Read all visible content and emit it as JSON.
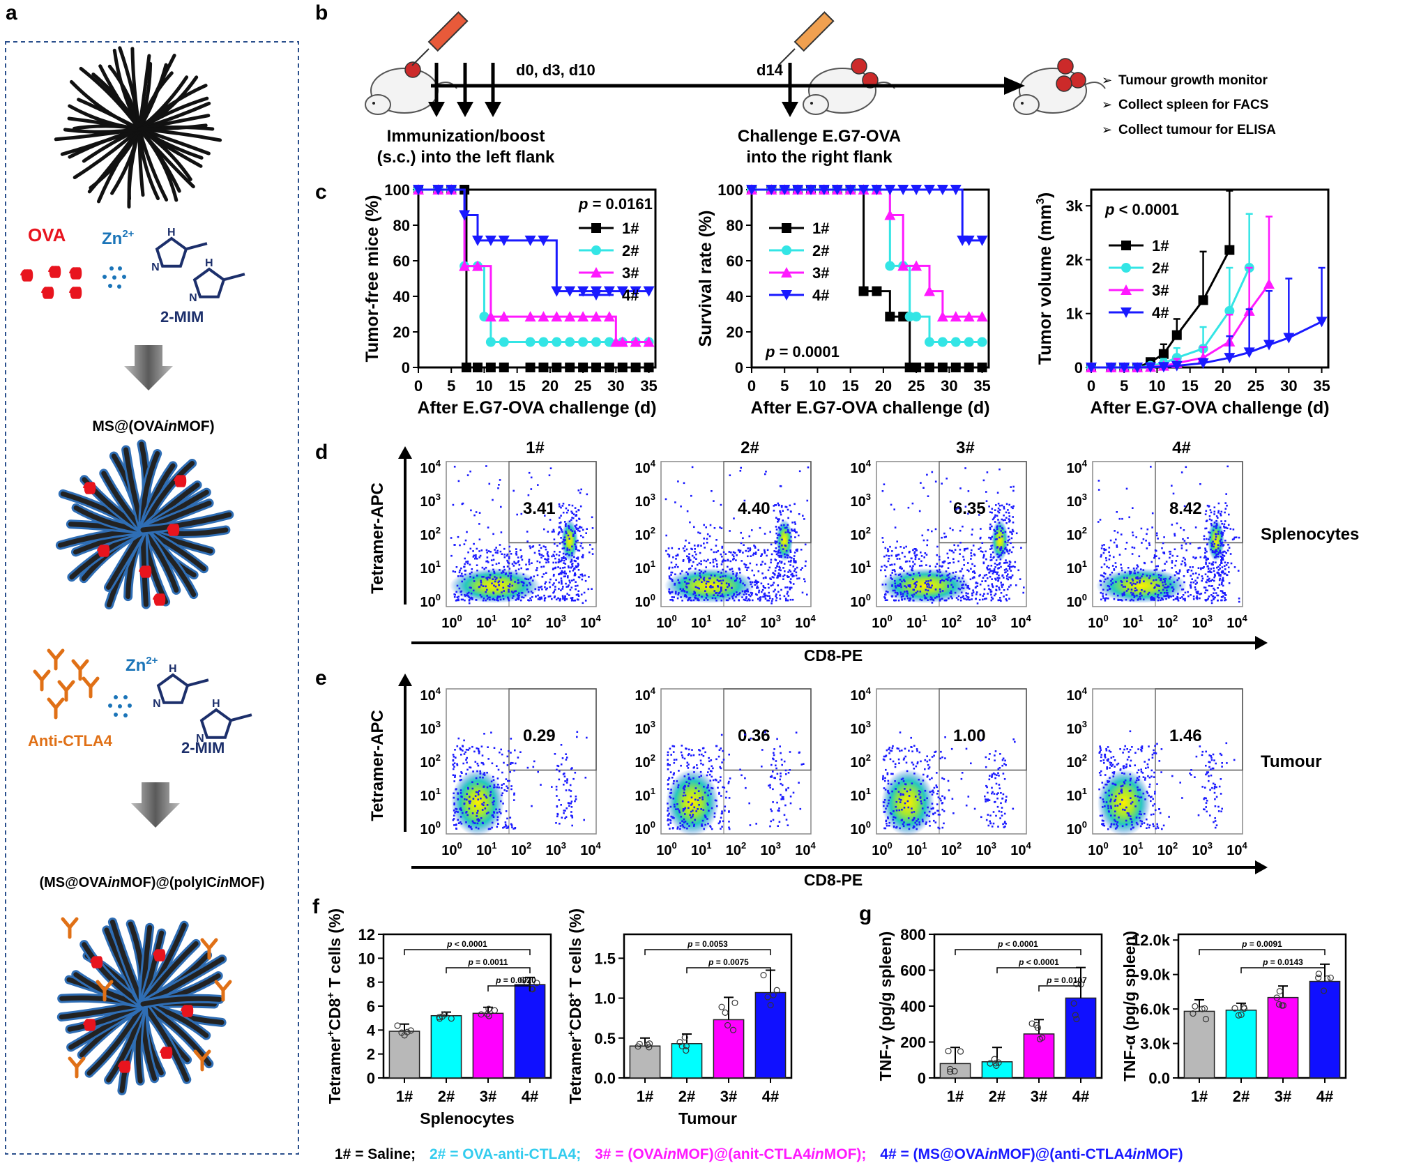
{
  "panel_letters": [
    "a",
    "b",
    "c",
    "d",
    "e",
    "f",
    "g"
  ],
  "colors": {
    "g1": "#000000",
    "g2": "#33e5e5",
    "g3": "#ff19ff",
    "g4": "#1919ff",
    "bar1": "#b8b8b8",
    "bar2": "#00ffff",
    "bar3": "#ff00ff",
    "bar4": "#1010ff",
    "ova": "#e8141e",
    "zn": "#1a74b8",
    "mim": "#1c2f6b",
    "ab": "#e07016",
    "mof": "#2f6eb5"
  },
  "panel_a": {
    "ova": "OVA",
    "zn": "Zn",
    "zn_sup": "2+",
    "mim": "2-MIM",
    "h": "H",
    "n": "N",
    "product1_pre": "MS@(OVA",
    "product1_it": "in",
    "product1_post": "MOF)",
    "anti": "Anti-CTLA4",
    "product2_a": "(MS@OVA",
    "product2_b": "in",
    "product2_c": "MOF)@(polyIC",
    "product2_d": "in",
    "product2_e": "MOF)"
  },
  "panel_b": {
    "timepoints": "d0, d3, d10",
    "challenge_day": "d14",
    "immunization": [
      "Immunization/boost",
      "(s.c.) into the left flank"
    ],
    "challenge": [
      "Challenge E.G7-OVA",
      "into the right flank"
    ],
    "readouts": [
      "Tumour growth monitor",
      "Collect spleen for FACS",
      "Collect tumour for ELISA"
    ]
  },
  "chart_data": [
    {
      "type": "line",
      "title": "",
      "xlabel": "After E.G7-OVA challenge (d)",
      "ylabel": "Tumor-free mice (%)",
      "xlim": [
        0,
        36
      ],
      "ylim": [
        0,
        100
      ],
      "xticks": [
        "0",
        "5",
        "10",
        "15",
        "20",
        "25",
        "30",
        "35"
      ],
      "yticks": [
        "0",
        "20",
        "40",
        "60",
        "80",
        "100"
      ],
      "p_text": "p = 0.0161",
      "legend": "top-right",
      "series": [
        {
          "name": "1#",
          "x": [
            0,
            3,
            5,
            7,
            7.3,
            9,
            11,
            13,
            17,
            19,
            21,
            23,
            25,
            27,
            29,
            31,
            33,
            35
          ],
          "y": [
            100,
            100,
            100,
            100,
            0,
            0,
            0,
            0,
            0,
            0,
            0,
            0,
            0,
            0,
            0,
            0,
            0,
            0
          ]
        },
        {
          "name": "2#",
          "x": [
            0,
            3,
            5,
            7,
            9,
            10,
            11,
            13,
            17,
            19,
            21,
            23,
            25,
            27,
            29,
            31,
            33,
            35
          ],
          "y": [
            100,
            100,
            100,
            57,
            57,
            28.6,
            14.3,
            14.3,
            14.3,
            14.3,
            14.3,
            14.3,
            14.3,
            14.3,
            14.3,
            14.3,
            14.3,
            14.3
          ]
        },
        {
          "name": "3#",
          "x": [
            0,
            3,
            5,
            7,
            9,
            11,
            13,
            17,
            19,
            21,
            23,
            25,
            27,
            29,
            30,
            31,
            33,
            35
          ],
          "y": [
            100,
            100,
            100,
            57,
            57,
            28.6,
            28.6,
            28.6,
            28.6,
            28.6,
            28.6,
            28.6,
            28.6,
            28.6,
            14.3,
            14.3,
            14.3,
            14.3
          ]
        },
        {
          "name": "4#",
          "x": [
            0,
            3,
            5,
            7,
            9,
            11,
            13,
            17,
            19,
            21,
            23,
            25,
            27,
            29,
            31,
            33,
            35
          ],
          "y": [
            100,
            100,
            100,
            85.7,
            71.4,
            71.4,
            71.4,
            71.4,
            71.4,
            42.9,
            42.9,
            42.9,
            42.9,
            42.9,
            42.9,
            42.9,
            42.9
          ]
        }
      ]
    },
    {
      "type": "line",
      "title": "",
      "xlabel": "After E.G7-OVA challenge (d)",
      "ylabel": "Survival rate (%)",
      "xlim": [
        0,
        36
      ],
      "ylim": [
        0,
        100
      ],
      "xticks": [
        "0",
        "5",
        "10",
        "15",
        "20",
        "25",
        "30",
        "35"
      ],
      "yticks": [
        "0",
        "20",
        "40",
        "60",
        "80",
        "100"
      ],
      "p_text": "p = 0.0001",
      "legend": "left",
      "series": [
        {
          "name": "1#",
          "x": [
            0,
            3,
            5,
            7,
            9,
            11,
            13,
            15,
            17,
            19,
            21,
            23,
            24,
            25,
            27,
            29,
            31,
            33,
            35
          ],
          "y": [
            100,
            100,
            100,
            100,
            100,
            100,
            100,
            100,
            42.9,
            42.9,
            28.6,
            28.6,
            0,
            0,
            0,
            0,
            0,
            0,
            0
          ]
        },
        {
          "name": "2#",
          "x": [
            0,
            3,
            5,
            7,
            9,
            11,
            13,
            15,
            17,
            19,
            21,
            23,
            24,
            25,
            27,
            29,
            31,
            33,
            35
          ],
          "y": [
            100,
            100,
            100,
            100,
            100,
            100,
            100,
            100,
            100,
            100,
            57.1,
            57.1,
            28.6,
            28.6,
            14.3,
            14.3,
            14.3,
            14.3,
            14.3
          ]
        },
        {
          "name": "3#",
          "x": [
            0,
            3,
            5,
            7,
            9,
            11,
            13,
            15,
            17,
            19,
            21,
            23,
            25,
            27,
            29,
            31,
            33,
            35
          ],
          "y": [
            100,
            100,
            100,
            100,
            100,
            100,
            100,
            100,
            100,
            100,
            85.7,
            57.1,
            57.1,
            42.9,
            28.6,
            28.6,
            28.6,
            28.6
          ]
        },
        {
          "name": "4#",
          "x": [
            0,
            3,
            5,
            7,
            9,
            11,
            13,
            15,
            17,
            19,
            21,
            23,
            25,
            27,
            29,
            31,
            32,
            33,
            35
          ],
          "y": [
            100,
            100,
            100,
            100,
            100,
            100,
            100,
            100,
            100,
            100,
            100,
            100,
            100,
            100,
            100,
            100,
            71.4,
            71.4,
            71.4
          ]
        }
      ]
    },
    {
      "type": "line",
      "title": "",
      "xlabel": "After E.G7-OVA challenge (d)",
      "ylabel": "Tumor volume (mm",
      "ylabel_sup": "3",
      "ylabel_close": ")",
      "xlim": [
        0,
        36
      ],
      "ylim": [
        0,
        3300
      ],
      "xticks": [
        "0",
        "5",
        "10",
        "15",
        "20",
        "25",
        "30",
        "35"
      ],
      "yticks": [
        "0",
        "1k",
        "2k",
        "3k"
      ],
      "p_text": "p < 0.0001",
      "legend": "top-left",
      "series": [
        {
          "name": "1#",
          "x": [
            0,
            3,
            5,
            7,
            9,
            11,
            13,
            17,
            21
          ],
          "y": [
            0,
            0,
            0,
            0,
            100,
            250,
            600,
            1250,
            2180
          ],
          "err": [
            0,
            0,
            0,
            0,
            60,
            180,
            300,
            900,
            1100
          ]
        },
        {
          "name": "2#",
          "x": [
            0,
            3,
            5,
            7,
            9,
            11,
            13,
            17,
            21,
            24
          ],
          "y": [
            0,
            0,
            0,
            0,
            30,
            80,
            180,
            350,
            1050,
            1850
          ],
          "err": [
            0,
            0,
            0,
            0,
            30,
            80,
            180,
            400,
            800,
            1000
          ]
        },
        {
          "name": "3#",
          "x": [
            0,
            3,
            5,
            7,
            9,
            11,
            13,
            17,
            21,
            24,
            27
          ],
          "y": [
            0,
            0,
            0,
            0,
            10,
            30,
            80,
            180,
            480,
            1050,
            1550
          ],
          "err": [
            0,
            0,
            0,
            0,
            10,
            30,
            80,
            200,
            500,
            800,
            1250
          ]
        },
        {
          "name": "4#",
          "x": [
            0,
            3,
            5,
            7,
            9,
            11,
            13,
            17,
            21,
            24,
            27,
            30,
            35
          ],
          "y": [
            0,
            0,
            0,
            0,
            5,
            10,
            30,
            80,
            180,
            280,
            420,
            550,
            850
          ],
          "err": [
            0,
            0,
            0,
            0,
            5,
            10,
            30,
            80,
            400,
            800,
            1000,
            1100,
            1000
          ]
        }
      ]
    },
    {
      "type": "scatter",
      "title": "1#",
      "sample": "Splenocytes",
      "gate_value": "3.41",
      "xlabel": "CD8-PE",
      "ylabel": "Tetramer-APC"
    },
    {
      "type": "scatter",
      "title": "2#",
      "sample": "Splenocytes",
      "gate_value": "4.40",
      "xlabel": "CD8-PE",
      "ylabel": "Tetramer-APC"
    },
    {
      "type": "scatter",
      "title": "3#",
      "sample": "Splenocytes",
      "gate_value": "6.35",
      "xlabel": "CD8-PE",
      "ylabel": "Tetramer-APC"
    },
    {
      "type": "scatter",
      "title": "4#",
      "sample": "Splenocytes",
      "gate_value": "8.42",
      "xlabel": "CD8-PE",
      "ylabel": "Tetramer-APC"
    },
    {
      "type": "scatter",
      "title": "",
      "sample": "Tumour",
      "gate_value": "0.29",
      "xlabel": "CD8-PE",
      "ylabel": "Tetramer-APC"
    },
    {
      "type": "scatter",
      "title": "",
      "sample": "Tumour",
      "gate_value": "0.36",
      "xlabel": "CD8-PE",
      "ylabel": "Tetramer-APC"
    },
    {
      "type": "scatter",
      "title": "",
      "sample": "Tumour",
      "gate_value": "1.00",
      "xlabel": "CD8-PE",
      "ylabel": "Tetramer-APC"
    },
    {
      "type": "scatter",
      "title": "",
      "sample": "Tumour",
      "gate_value": "1.46",
      "xlabel": "CD8-PE",
      "ylabel": "Tetramer-APC"
    },
    {
      "type": "bar",
      "categories": [
        "1#",
        "2#",
        "3#",
        "4#"
      ],
      "values": [
        3.9,
        5.2,
        5.4,
        7.8
      ],
      "err": [
        0.6,
        0.3,
        0.5,
        0.6
      ],
      "ylabel": "Tetramer",
      "ylabel_sup1": "+",
      "ylabel_mid": "CD8",
      "ylabel_sup2": "+",
      "ylabel_end": " T cells (%)",
      "xlabel": "Splenocytes",
      "ylim": [
        0,
        12
      ],
      "yticks": [
        "0",
        "2",
        "4",
        "6",
        "8",
        "10",
        "12"
      ],
      "pvalues": [
        {
          "text": "p < 0.0001",
          "from": 0,
          "to": 3
        },
        {
          "text": "p = 0.0011",
          "from": 1,
          "to": 3
        },
        {
          "text": "p = 0.0020",
          "from": 2,
          "to": 3
        }
      ]
    },
    {
      "type": "bar",
      "categories": [
        "1#",
        "2#",
        "3#",
        "4#"
      ],
      "values": [
        0.4,
        0.43,
        0.73,
        1.07
      ],
      "err": [
        0.1,
        0.12,
        0.28,
        0.28
      ],
      "ylabel": "Tetramer",
      "ylabel_sup1": "+",
      "ylabel_mid": "CD8",
      "ylabel_sup2": "+",
      "ylabel_end": " T cells (%)",
      "xlabel": "Tumour",
      "ylim": [
        0,
        1.8
      ],
      "yticks": [
        "0.0",
        "0.5",
        "1.0",
        "1.5"
      ],
      "pvalues": [
        {
          "text": "p = 0.0053",
          "from": 0,
          "to": 3
        },
        {
          "text": "p = 0.0075",
          "from": 1,
          "to": 3
        }
      ]
    },
    {
      "type": "bar",
      "categories": [
        "1#",
        "2#",
        "3#",
        "4#"
      ],
      "values": [
        80,
        90,
        245,
        445
      ],
      "err": [
        90,
        80,
        80,
        170
      ],
      "ylabel": "TNF-γ (pg/g spleen)",
      "xlabel": "",
      "ylim": [
        0,
        800
      ],
      "yticks": [
        "0",
        "200",
        "400",
        "600",
        "800"
      ],
      "pvalues": [
        {
          "text": "p < 0.0001",
          "from": 0,
          "to": 3
        },
        {
          "text": "p < 0.0001",
          "from": 1,
          "to": 3
        },
        {
          "text": "p = 0.0107",
          "from": 2,
          "to": 3
        }
      ]
    },
    {
      "type": "bar",
      "categories": [
        "1#",
        "2#",
        "3#",
        "4#"
      ],
      "values": [
        5800,
        5900,
        7000,
        8400
      ],
      "err": [
        1000,
        600,
        1000,
        1500
      ],
      "ylabel": "TNF-α (pg/g spleen)",
      "xlabel": "",
      "ylim": [
        0,
        12500
      ],
      "yticks": [
        "0.0",
        "3.0k",
        "6.0k",
        "9.0k",
        "12.0k"
      ],
      "pvalues": [
        {
          "text": "p = 0.0091",
          "from": 0,
          "to": 3
        },
        {
          "text": "p = 0.0143",
          "from": 1,
          "to": 3
        }
      ]
    }
  ],
  "flow_ticks": [
    "10",
    "10",
    "10",
    "10",
    "10"
  ],
  "flow_tick_exps": [
    "0",
    "1",
    "2",
    "3",
    "4"
  ],
  "footer": [
    {
      "text": "1# = Saline;",
      "color": "#000000"
    },
    {
      "pre": "2# = OVA-anti-CTLA4;",
      "color": "#33ccee"
    },
    {
      "pre": "3# = (OVA",
      "it": "in",
      "mid": "MOF)@(anit-CTLA4",
      "it2": "in",
      "post": "MOF);",
      "color": "#ff19ff"
    },
    {
      "pre": "4# = (MS@OVA",
      "it": "in",
      "mid": "MOF)@(anti-CTLA4",
      "it2": "in",
      "post": "MOF)",
      "color": "#1919ff"
    }
  ]
}
